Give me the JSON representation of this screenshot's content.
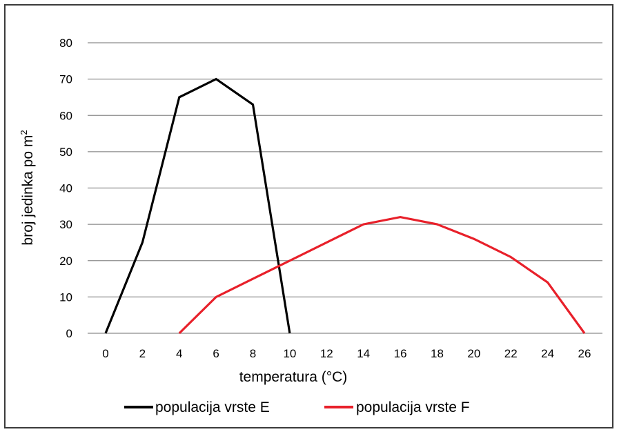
{
  "chart_data": {
    "type": "line",
    "title": "",
    "xlabel": "temperatura (°C)",
    "ylabel": "broj jedinka po m",
    "ylabel_superscript": "2",
    "x": [
      0,
      2,
      4,
      6,
      8,
      10,
      12,
      14,
      16,
      18,
      20,
      22,
      24,
      26
    ],
    "xticks": [
      "0",
      "2",
      "4",
      "6",
      "8",
      "10",
      "12",
      "14",
      "16",
      "18",
      "20",
      "22",
      "24",
      "26"
    ],
    "yticks": [
      "0",
      "10",
      "20",
      "30",
      "40",
      "50",
      "60",
      "70",
      "80"
    ],
    "xlim": [
      0,
      26
    ],
    "ylim": [
      0,
      80
    ],
    "grid": true,
    "legend_position": "bottom",
    "series": [
      {
        "name": "populacija vrste E",
        "color": "#000000",
        "points": [
          [
            0,
            0
          ],
          [
            2,
            25
          ],
          [
            4,
            65
          ],
          [
            6,
            70
          ],
          [
            8,
            63
          ],
          [
            10,
            0
          ]
        ]
      },
      {
        "name": "populacija vrste F",
        "color": "#e8202a",
        "points": [
          [
            4,
            0
          ],
          [
            6,
            10
          ],
          [
            8,
            15
          ],
          [
            10,
            20
          ],
          [
            12,
            25
          ],
          [
            14,
            30
          ],
          [
            16,
            32
          ],
          [
            18,
            30
          ],
          [
            20,
            26
          ],
          [
            22,
            21
          ],
          [
            24,
            14
          ],
          [
            26,
            0
          ]
        ]
      }
    ]
  }
}
